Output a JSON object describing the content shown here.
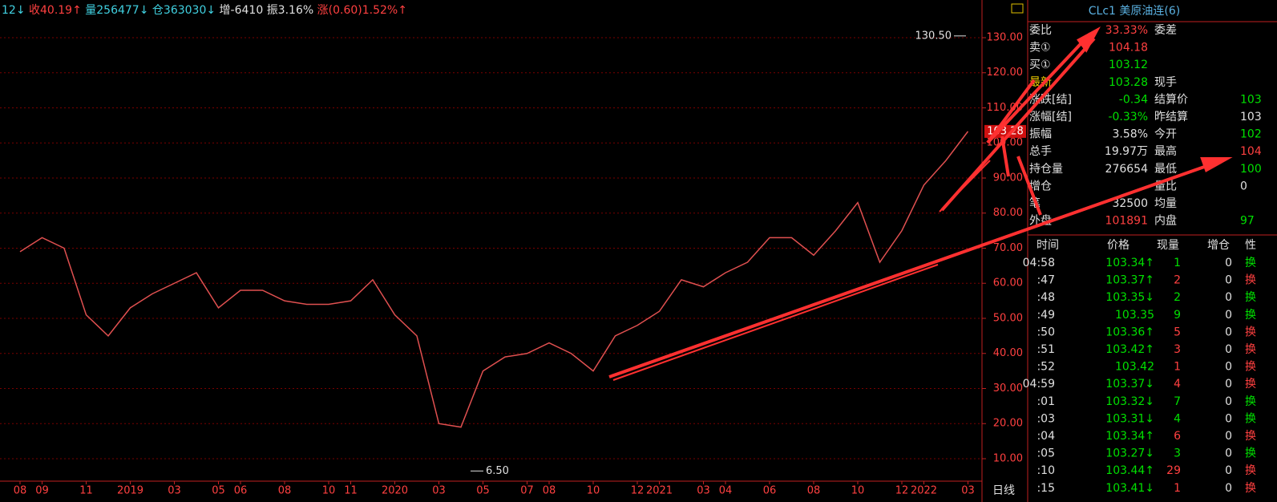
{
  "header": {
    "items": [
      {
        "text": "12↓",
        "color": "#40d0e0"
      },
      {
        "text": "收40.19↑",
        "color": "#ff4040"
      },
      {
        "text": "量256477↓",
        "color": "#40d0e0"
      },
      {
        "text": "仓363030↓",
        "color": "#40d0e0"
      },
      {
        "text": "增-6410",
        "color": "#e0e0e0"
      },
      {
        "text": "振3.16%",
        "color": "#e0e0e0"
      },
      {
        "text": "涨(0.60)1.52%↑",
        "color": "#ff4040"
      }
    ]
  },
  "chart_data": {
    "type": "line",
    "categories": [
      "08",
      "09",
      null,
      "11",
      null,
      "2019",
      null,
      "03",
      null,
      "05",
      "06",
      null,
      "08",
      null,
      "10",
      "11",
      null,
      "2020",
      null,
      "03",
      null,
      "05",
      null,
      "07",
      "08",
      null,
      "10",
      null,
      "12",
      "2021",
      null,
      "03",
      "04",
      null,
      "06",
      null,
      "08",
      null,
      "10",
      null,
      "12",
      "2022",
      null,
      "03"
    ],
    "series": [
      {
        "name": "CLc1",
        "color": "#e05050",
        "values": [
          69,
          73,
          70,
          51,
          45,
          53,
          57,
          60,
          63,
          53,
          58,
          58,
          55,
          54,
          54,
          55,
          61,
          51,
          45,
          20,
          19,
          35,
          39,
          40,
          43,
          40,
          35,
          45,
          48,
          52,
          61,
          59,
          63,
          66,
          73,
          73,
          68,
          75,
          83,
          66,
          75,
          88,
          95,
          103.28
        ]
      }
    ],
    "ylim": [
      3.6,
      140.74
    ],
    "yticks": [
      {
        "value": 10,
        "label": "10.00"
      },
      {
        "value": 20,
        "label": "20.00"
      },
      {
        "value": 30,
        "label": "30.00"
      },
      {
        "value": 40,
        "label": "40.00"
      },
      {
        "value": 50,
        "label": "50.00"
      },
      {
        "value": 60,
        "label": "60.00"
      },
      {
        "value": 70,
        "label": "70.00"
      },
      {
        "value": 80,
        "label": "80.00"
      },
      {
        "value": 90,
        "label": "90.00"
      },
      {
        "value": 100,
        "label": "100.00"
      },
      {
        "value": 110,
        "label": "110.00"
      },
      {
        "value": 120,
        "label": "120.00"
      },
      {
        "value": 130,
        "label": "130.00"
      }
    ],
    "grid": true,
    "annotations": [
      {
        "value": 130.5,
        "label": "130.50"
      },
      {
        "value": 6.5,
        "label": "6.50"
      }
    ],
    "last_price": {
      "value": 103.28,
      "label": "103.28"
    },
    "period": "日线"
  },
  "panel": {
    "title": "CLc1 美原油连(6)",
    "quote": [
      {
        "label": "委比",
        "value": "33.33%",
        "color": "#ff4040",
        "label2": "委差"
      },
      {
        "label": "卖①",
        "value": "104.18",
        "color": "#ff4040"
      },
      {
        "label": "买①",
        "value": "103.12",
        "color": "#00e000"
      },
      {
        "label": "最新",
        "value": "103.28",
        "color": "#00e000",
        "label2": "现手"
      },
      {
        "label": "涨跌[结]",
        "value": "-0.34",
        "color": "#00e000",
        "label2": "结算价",
        "value2": "103",
        "color2": "#00e000"
      },
      {
        "label": "涨幅[结]",
        "value": "-0.33%",
        "color": "#00e000",
        "label2": "昨结算",
        "value2": "103",
        "color2": "#e0e0e0"
      },
      {
        "label": "振幅",
        "value": "3.58%",
        "color": "#e0e0e0",
        "label2": "今开",
        "value2": "102",
        "color2": "#00e000"
      },
      {
        "label": "总手",
        "value": "19.97万",
        "color": "#e0e0e0",
        "label2": "最高",
        "value2": "104",
        "color2": "#ff4040"
      },
      {
        "label": "持仓量",
        "value": "276654",
        "color": "#e0e0e0",
        "label2": "最低",
        "value2": "100",
        "color2": "#00e000"
      },
      {
        "label": "增仓",
        "label2": "量比",
        "value2": "0",
        "color2": "#e0e0e0"
      },
      {
        "label": "笔",
        "value": "32500",
        "color": "#e0e0e0",
        "label2": "均量"
      },
      {
        "label": "外盘",
        "value": "101891",
        "color": "#ff4040",
        "label2": "内盘",
        "value2": "97",
        "color2": "#00e000"
      }
    ],
    "trades": {
      "columns": [
        "时间",
        "价格",
        "现量",
        "增仓",
        "性"
      ],
      "rows": [
        [
          "04:58",
          "103.34↑",
          "1",
          "0",
          "换",
          "#00e000"
        ],
        [
          ":47",
          "103.37↑",
          "2",
          "0",
          "换",
          "#ff4040"
        ],
        [
          ":48",
          "103.35↓",
          "2",
          "0",
          "换",
          "#00e000"
        ],
        [
          ":49",
          "103.35",
          "9",
          "0",
          "换",
          "#00e000"
        ],
        [
          ":50",
          "103.36↑",
          "5",
          "0",
          "换",
          "#ff4040"
        ],
        [
          ":51",
          "103.42↑",
          "3",
          "0",
          "换",
          "#ff4040"
        ],
        [
          ":52",
          "103.42",
          "1",
          "0",
          "换",
          "#ff4040"
        ],
        [
          "04:59",
          "103.37↓",
          "4",
          "0",
          "换",
          "#ff4040"
        ],
        [
          ":01",
          "103.32↓",
          "7",
          "0",
          "换",
          "#00e000"
        ],
        [
          ":03",
          "103.31↓",
          "4",
          "0",
          "换",
          "#00e000"
        ],
        [
          ":04",
          "103.34↑",
          "6",
          "0",
          "换",
          "#ff4040"
        ],
        [
          ":05",
          "103.27↓",
          "3",
          "0",
          "换",
          "#00e000"
        ],
        [
          ":10",
          "103.44↑",
          "29",
          "0",
          "换",
          "#ff4040"
        ],
        [
          ":15",
          "103.41↓",
          "1",
          "0",
          "换",
          "#ff4040"
        ]
      ]
    }
  }
}
